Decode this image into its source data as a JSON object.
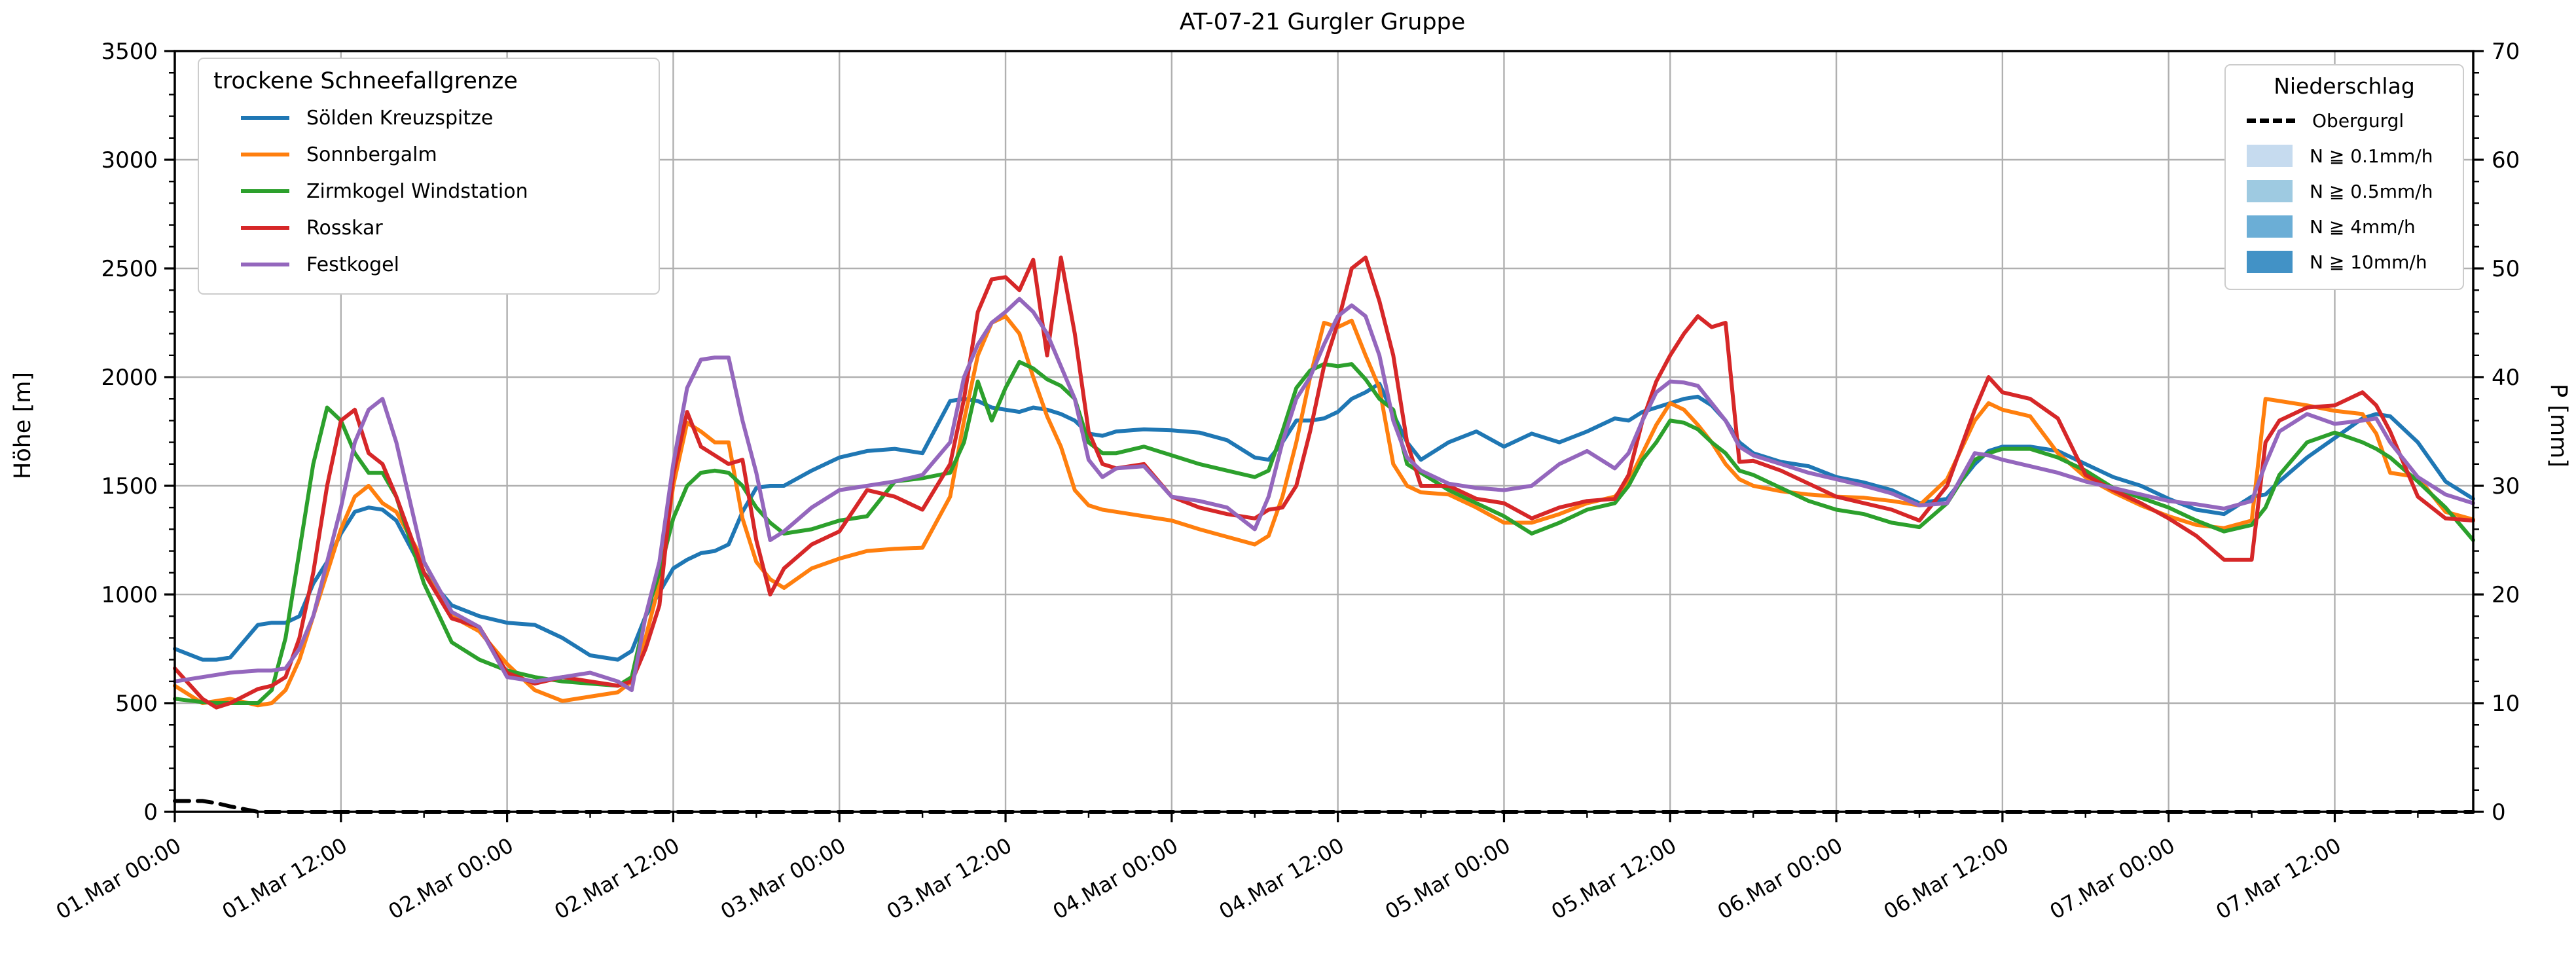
{
  "title": "AT-07-21 Gurgler Gruppe",
  "axes": {
    "y_left": {
      "label": "Höhe [m]",
      "min": 0,
      "max": 3500,
      "tick_step": 500,
      "tick_labels": [
        "0",
        "500",
        "1000",
        "1500",
        "2000",
        "2500",
        "3000",
        "3500"
      ]
    },
    "y_right": {
      "label": "P [mm]",
      "min": 0,
      "max": 70,
      "tick_step": 10,
      "tick_labels": [
        "0",
        "10",
        "20",
        "30",
        "40",
        "50",
        "60",
        "70"
      ]
    },
    "x": {
      "tick_labels": [
        "01.Mar 00:00",
        "01.Mar 12:00",
        "02.Mar 00:00",
        "02.Mar 12:00",
        "03.Mar 00:00",
        "03.Mar 12:00",
        "04.Mar 00:00",
        "04.Mar 12:00",
        "05.Mar 00:00",
        "05.Mar 12:00",
        "06.Mar 00:00",
        "06.Mar 12:00",
        "07.Mar 00:00",
        "07.Mar 12:00"
      ],
      "tick_hours": [
        0,
        12,
        24,
        36,
        48,
        60,
        72,
        84,
        96,
        108,
        120,
        132,
        144,
        156
      ],
      "minor_step_hours": 6
    }
  },
  "legend_left": {
    "title": "trockene Schneefallgrenze",
    "items": [
      {
        "label": "Sölden Kreuzspitze",
        "color": "#1f77b4"
      },
      {
        "label": "Sonnbergalm",
        "color": "#ff7f0e"
      },
      {
        "label": "Zirmkogel Windstation",
        "color": "#2ca02c"
      },
      {
        "label": "Rosskar",
        "color": "#d62728"
      },
      {
        "label": "Festkogel",
        "color": "#9467bd"
      }
    ]
  },
  "legend_right": {
    "title": "Niederschlag",
    "items": [
      {
        "label": "Obergurgl",
        "type": "dashed-line",
        "color": "#000000"
      },
      {
        "label": "N ≧ 0.1mm/h",
        "type": "patch",
        "color": "#c6dbef"
      },
      {
        "label": "N ≧ 0.5mm/h",
        "type": "patch",
        "color": "#9ecae1"
      },
      {
        "label": "N ≧ 4mm/h",
        "type": "patch",
        "color": "#6baed6"
      },
      {
        "label": "N ≧ 10mm/h",
        "type": "patch",
        "color": "#4292c6"
      }
    ]
  },
  "chart_data": {
    "type": "line",
    "title": "AT-07-21 Gurgler Gruppe",
    "xlabel": "",
    "ylabel_left": "Höhe [m]",
    "ylabel_right": "P [mm]",
    "ylim_left": [
      0,
      3500
    ],
    "ylim_right": [
      0,
      70
    ],
    "x_unit": "hours since 01.Mar 00:00",
    "x_end_hour": 166,
    "grid": true,
    "grid_color": "#b0b0b0",
    "x": [
      0,
      2,
      3,
      4,
      6,
      7,
      8,
      9,
      10,
      11,
      12,
      13,
      14,
      15,
      16,
      18,
      20,
      22,
      24,
      26,
      28,
      30,
      32,
      33,
      34,
      35,
      36,
      37,
      38,
      39,
      40,
      41,
      42,
      43,
      44,
      46,
      48,
      50,
      52,
      54,
      56,
      57,
      58,
      59,
      60,
      61,
      62,
      63,
      64,
      65,
      66,
      67,
      68,
      70,
      72,
      74,
      76,
      78,
      79,
      80,
      81,
      82,
      83,
      84,
      85,
      86,
      87,
      88,
      89,
      90,
      92,
      94,
      96,
      98,
      100,
      102,
      104,
      105,
      106,
      107,
      108,
      109,
      110,
      111,
      112,
      113,
      114,
      116,
      118,
      120,
      122,
      124,
      126,
      128,
      130,
      131,
      132,
      134,
      136,
      138,
      140,
      142,
      144,
      146,
      148,
      150,
      151,
      152,
      154,
      156,
      158,
      159,
      160,
      162,
      164,
      166
    ],
    "series": [
      {
        "name": "Sölden Kreuzspitze",
        "axis": "left",
        "style": "solid",
        "color": "#1f77b4",
        "values": [
          750,
          700,
          700,
          710,
          860,
          870,
          870,
          900,
          1050,
          1150,
          1280,
          1380,
          1400,
          1390,
          1340,
          1100,
          950,
          900,
          870,
          860,
          800,
          720,
          700,
          740,
          900,
          1010,
          1120,
          1160,
          1190,
          1200,
          1230,
          1380,
          1490,
          1500,
          1500,
          1570,
          1630,
          1660,
          1670,
          1650,
          1890,
          1900,
          1890,
          1860,
          1850,
          1840,
          1860,
          1850,
          1830,
          1800,
          1740,
          1730,
          1750,
          1760,
          1755,
          1745,
          1710,
          1630,
          1620,
          1700,
          1800,
          1800,
          1810,
          1840,
          1900,
          1930,
          1970,
          1830,
          1700,
          1620,
          1700,
          1750,
          1680,
          1740,
          1700,
          1750,
          1810,
          1800,
          1840,
          1860,
          1880,
          1900,
          1910,
          1870,
          1800,
          1700,
          1650,
          1610,
          1590,
          1540,
          1515,
          1480,
          1420,
          1440,
          1600,
          1660,
          1680,
          1680,
          1660,
          1600,
          1540,
          1500,
          1440,
          1390,
          1370,
          1450,
          1460,
          1520,
          1630,
          1720,
          1810,
          1830,
          1820,
          1700,
          1520,
          1440
        ]
      },
      {
        "name": "Sonnbergalm",
        "axis": "left",
        "style": "solid",
        "color": "#ff7f0e",
        "values": [
          580,
          500,
          510,
          520,
          490,
          500,
          560,
          700,
          900,
          1100,
          1300,
          1450,
          1500,
          1420,
          1380,
          1150,
          900,
          830,
          680,
          560,
          510,
          530,
          550,
          600,
          800,
          1050,
          1500,
          1790,
          1750,
          1700,
          1700,
          1350,
          1150,
          1070,
          1030,
          1120,
          1165,
          1200,
          1210,
          1215,
          1450,
          1800,
          2100,
          2250,
          2280,
          2200,
          2000,
          1820,
          1680,
          1480,
          1410,
          1390,
          1380,
          1360,
          1340,
          1300,
          1265,
          1230,
          1270,
          1450,
          1700,
          2000,
          2250,
          2230,
          2260,
          2100,
          1950,
          1600,
          1500,
          1470,
          1460,
          1400,
          1330,
          1330,
          1370,
          1420,
          1450,
          1520,
          1650,
          1780,
          1880,
          1850,
          1780,
          1700,
          1600,
          1530,
          1500,
          1475,
          1460,
          1450,
          1445,
          1430,
          1410,
          1530,
          1800,
          1880,
          1850,
          1820,
          1650,
          1540,
          1470,
          1410,
          1360,
          1320,
          1305,
          1340,
          1900,
          1890,
          1870,
          1845,
          1830,
          1740,
          1560,
          1540,
          1380,
          1345
        ]
      },
      {
        "name": "Zirmkogel Windstation",
        "axis": "left",
        "style": "solid",
        "color": "#2ca02c",
        "values": [
          520,
          505,
          500,
          500,
          500,
          560,
          800,
          1200,
          1600,
          1860,
          1800,
          1650,
          1560,
          1560,
          1450,
          1050,
          780,
          700,
          650,
          620,
          600,
          590,
          580,
          620,
          900,
          1100,
          1350,
          1500,
          1560,
          1570,
          1560,
          1500,
          1400,
          1330,
          1280,
          1300,
          1340,
          1360,
          1520,
          1535,
          1560,
          1700,
          1980,
          1800,
          1950,
          2070,
          2040,
          1990,
          1960,
          1900,
          1700,
          1650,
          1650,
          1680,
          1640,
          1600,
          1570,
          1540,
          1570,
          1750,
          1950,
          2030,
          2060,
          2050,
          2060,
          1990,
          1900,
          1850,
          1600,
          1560,
          1480,
          1420,
          1360,
          1280,
          1330,
          1390,
          1420,
          1500,
          1620,
          1700,
          1800,
          1790,
          1760,
          1700,
          1650,
          1570,
          1550,
          1490,
          1430,
          1390,
          1370,
          1330,
          1310,
          1420,
          1620,
          1650,
          1670,
          1670,
          1630,
          1570,
          1490,
          1445,
          1400,
          1340,
          1290,
          1320,
          1400,
          1550,
          1700,
          1745,
          1700,
          1670,
          1630,
          1520,
          1400,
          1250
        ]
      },
      {
        "name": "Rosskar",
        "axis": "left",
        "style": "solid",
        "color": "#d62728",
        "values": [
          660,
          520,
          480,
          500,
          565,
          580,
          620,
          800,
          1100,
          1500,
          1800,
          1850,
          1650,
          1600,
          1450,
          1100,
          890,
          850,
          640,
          590,
          620,
          600,
          580,
          600,
          750,
          950,
          1550,
          1840,
          1680,
          1640,
          1600,
          1620,
          1250,
          1000,
          1120,
          1230,
          1290,
          1480,
          1450,
          1390,
          1600,
          1900,
          2300,
          2450,
          2460,
          2400,
          2540,
          2100,
          2550,
          2200,
          1750,
          1600,
          1580,
          1600,
          1450,
          1400,
          1370,
          1350,
          1390,
          1400,
          1500,
          1750,
          2050,
          2250,
          2500,
          2550,
          2350,
          2100,
          1700,
          1500,
          1500,
          1440,
          1420,
          1350,
          1400,
          1430,
          1440,
          1550,
          1800,
          1980,
          2100,
          2200,
          2280,
          2230,
          2250,
          1610,
          1615,
          1570,
          1510,
          1450,
          1420,
          1390,
          1340,
          1500,
          1850,
          2000,
          1930,
          1900,
          1810,
          1550,
          1480,
          1420,
          1350,
          1270,
          1160,
          1160,
          1700,
          1800,
          1860,
          1870,
          1930,
          1870,
          1750,
          1450,
          1350,
          1340
        ]
      },
      {
        "name": "Festkogel",
        "axis": "left",
        "style": "solid",
        "color": "#9467bd",
        "values": [
          600,
          620,
          630,
          640,
          650,
          650,
          660,
          750,
          900,
          1150,
          1400,
          1700,
          1850,
          1900,
          1700,
          1150,
          920,
          850,
          620,
          600,
          620,
          640,
          600,
          560,
          900,
          1150,
          1600,
          1950,
          2080,
          2090,
          2090,
          1800,
          1560,
          1250,
          1290,
          1400,
          1480,
          1500,
          1520,
          1550,
          1700,
          2000,
          2150,
          2250,
          2300,
          2360,
          2300,
          2200,
          2050,
          1900,
          1620,
          1540,
          1580,
          1590,
          1450,
          1430,
          1400,
          1300,
          1450,
          1700,
          1900,
          2000,
          2150,
          2280,
          2330,
          2280,
          2100,
          1800,
          1630,
          1570,
          1510,
          1490,
          1480,
          1500,
          1600,
          1660,
          1580,
          1650,
          1800,
          1930,
          1980,
          1975,
          1960,
          1880,
          1800,
          1680,
          1640,
          1600,
          1560,
          1530,
          1500,
          1465,
          1410,
          1420,
          1650,
          1640,
          1620,
          1590,
          1560,
          1520,
          1490,
          1460,
          1430,
          1415,
          1395,
          1430,
          1600,
          1750,
          1830,
          1785,
          1800,
          1810,
          1700,
          1540,
          1460,
          1420
        ]
      },
      {
        "name": "Obergurgl",
        "axis": "right",
        "style": "dashed",
        "color": "#000000",
        "values": [
          1,
          1,
          0.8,
          0.5,
          0,
          0,
          0,
          0,
          0,
          0,
          0,
          0,
          0,
          0,
          0,
          0,
          0,
          0,
          0,
          0,
          0,
          0,
          0,
          0,
          0,
          0,
          0,
          0,
          0,
          0,
          0,
          0,
          0,
          0,
          0,
          0,
          0,
          0,
          0,
          0,
          0,
          0,
          0,
          0,
          0,
          0,
          0,
          0,
          0,
          0,
          0,
          0,
          0,
          0,
          0,
          0,
          0,
          0,
          0,
          0,
          0,
          0,
          0,
          0,
          0,
          0,
          0,
          0,
          0,
          0,
          0,
          0,
          0,
          0,
          0,
          0,
          0,
          0,
          0,
          0,
          0,
          0,
          0,
          0,
          0,
          0,
          0,
          0,
          0,
          0,
          0,
          0,
          0,
          0,
          0,
          0,
          0,
          0,
          0,
          0,
          0,
          0,
          0,
          0,
          0,
          0,
          0,
          0,
          0,
          0,
          0,
          0,
          0,
          0,
          0,
          0
        ]
      }
    ]
  }
}
